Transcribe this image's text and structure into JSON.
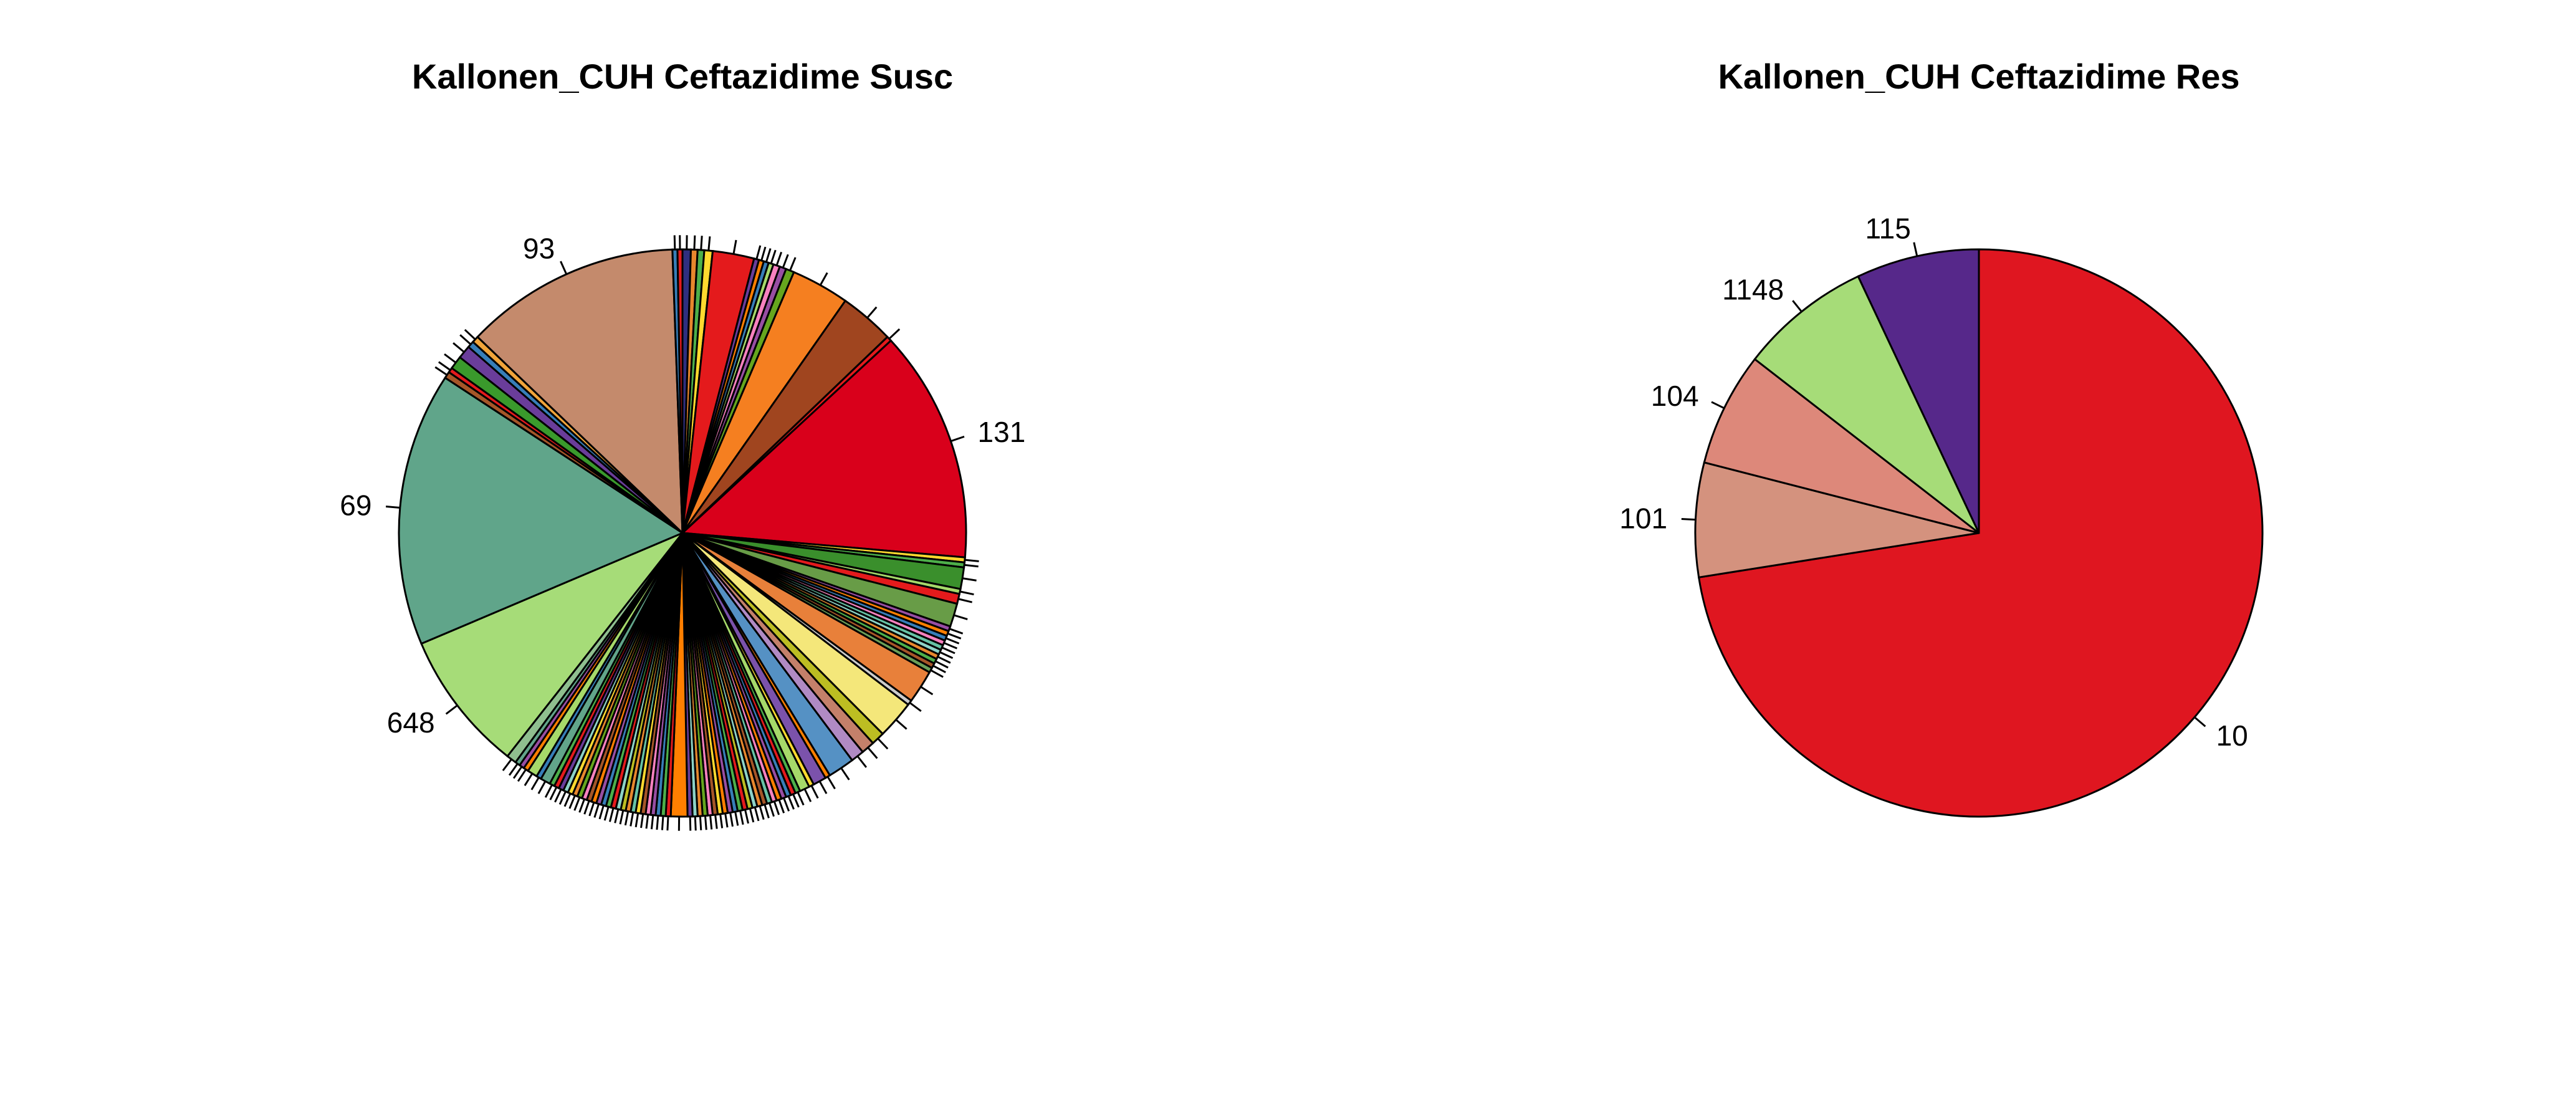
{
  "chart_data": [
    {
      "type": "pie",
      "title": "Kallonen_CUH Ceftazidime Susc",
      "slices": [
        {
          "label": "",
          "value": 0.5,
          "color": "#2f2f7f"
        },
        {
          "label": "",
          "value": 0.4,
          "color": "#e7872d"
        },
        {
          "label": "",
          "value": 0.4,
          "color": "#4daf4a"
        },
        {
          "label": "",
          "value": 0.5,
          "color": "#ffd92f"
        },
        {
          "label": "",
          "value": 2.5,
          "color": "#e41a1c"
        },
        {
          "label": "",
          "value": 0.3,
          "color": "#6a3d9a"
        },
        {
          "label": "",
          "value": 0.3,
          "color": "#ff7f00"
        },
        {
          "label": "",
          "value": 0.3,
          "color": "#377eb8"
        },
        {
          "label": "",
          "value": 0.3,
          "color": "#a6d96a"
        },
        {
          "label": "",
          "value": 0.4,
          "color": "#f781bf"
        },
        {
          "label": "",
          "value": 0.4,
          "color": "#984ea3"
        },
        {
          "label": "",
          "value": 0.5,
          "color": "#66a61e"
        },
        {
          "label": "",
          "value": 3.5,
          "color": "#f57f20"
        },
        {
          "label": "",
          "value": 3.3,
          "color": "#a0451f"
        },
        {
          "label": "",
          "value": 0.3,
          "color": "#e41a1c"
        },
        {
          "label": "131",
          "value": 14.0,
          "color": "#d9001b"
        },
        {
          "label": "",
          "value": 0.3,
          "color": "#ffd92f"
        },
        {
          "label": "",
          "value": 0.3,
          "color": "#4daf4a"
        },
        {
          "label": "",
          "value": 1.3,
          "color": "#3a8f2c"
        },
        {
          "label": "",
          "value": 0.3,
          "color": "#a6d96a"
        },
        {
          "label": "",
          "value": 0.6,
          "color": "#e41a1c"
        },
        {
          "label": "",
          "value": 1.4,
          "color": "#689c47"
        },
        {
          "label": "",
          "value": 0.3,
          "color": "#984ea3"
        },
        {
          "label": "",
          "value": 0.3,
          "color": "#ff7f00"
        },
        {
          "label": "",
          "value": 0.3,
          "color": "#377eb8"
        },
        {
          "label": "",
          "value": 0.3,
          "color": "#f781bf"
        },
        {
          "label": "",
          "value": 0.3,
          "color": "#66c2a5"
        },
        {
          "label": "",
          "value": 0.3,
          "color": "#8dd3c7"
        },
        {
          "label": "",
          "value": 0.3,
          "color": "#e7872d"
        },
        {
          "label": "",
          "value": 0.3,
          "color": "#4daf4a"
        },
        {
          "label": "",
          "value": 0.3,
          "color": "#a65628"
        },
        {
          "label": "",
          "value": 0.3,
          "color": "#6a9f58"
        },
        {
          "label": "",
          "value": 2.0,
          "color": "#e8803a"
        },
        {
          "label": "",
          "value": 0.3,
          "color": "#cccccc"
        },
        {
          "label": "",
          "value": 2.3,
          "color": "#f4e77a"
        },
        {
          "label": "",
          "value": 0.8,
          "color": "#bcbd22"
        },
        {
          "label": "",
          "value": 0.8,
          "color": "#c4806a"
        },
        {
          "label": "",
          "value": 0.8,
          "color": "#b08ac4"
        },
        {
          "label": "",
          "value": 1.6,
          "color": "#5591c4"
        },
        {
          "label": "",
          "value": 0.3,
          "color": "#ff7f00"
        },
        {
          "label": "",
          "value": 0.8,
          "color": "#7b52ab"
        },
        {
          "label": "",
          "value": 0.3,
          "color": "#ffd92f"
        },
        {
          "label": "",
          "value": 0.6,
          "color": "#a6d96a"
        },
        {
          "label": "",
          "value": 0.3,
          "color": "#4daf4a"
        },
        {
          "label": "",
          "value": 0.3,
          "color": "#e41a1c"
        },
        {
          "label": "",
          "value": 0.3,
          "color": "#377eb8"
        },
        {
          "label": "",
          "value": 0.3,
          "color": "#984ea3"
        },
        {
          "label": "",
          "value": 0.3,
          "color": "#ff7f00"
        },
        {
          "label": "",
          "value": 0.3,
          "color": "#f781bf"
        },
        {
          "label": "",
          "value": 0.3,
          "color": "#66c2a5"
        },
        {
          "label": "",
          "value": 0.3,
          "color": "#a65628"
        },
        {
          "label": "",
          "value": 0.3,
          "color": "#e7872d"
        },
        {
          "label": "",
          "value": 0.3,
          "color": "#8dd3c7"
        },
        {
          "label": "",
          "value": 0.3,
          "color": "#bcbd22"
        },
        {
          "label": "",
          "value": 0.3,
          "color": "#e41a1c"
        },
        {
          "label": "",
          "value": 0.3,
          "color": "#4daf4a"
        },
        {
          "label": "",
          "value": 0.3,
          "color": "#377eb8"
        },
        {
          "label": "",
          "value": 0.3,
          "color": "#984ea3"
        },
        {
          "label": "",
          "value": 0.3,
          "color": "#ff7f00"
        },
        {
          "label": "",
          "value": 0.3,
          "color": "#ffd92f"
        },
        {
          "label": "",
          "value": 0.3,
          "color": "#a65628"
        },
        {
          "label": "",
          "value": 0.3,
          "color": "#f781bf"
        },
        {
          "label": "",
          "value": 0.3,
          "color": "#66a61e"
        },
        {
          "label": "",
          "value": 0.3,
          "color": "#e7872d"
        },
        {
          "label": "",
          "value": 0.3,
          "color": "#8dd3c7"
        },
        {
          "label": "",
          "value": 0.3,
          "color": "#6a3d9a"
        },
        {
          "label": "",
          "value": 1.0,
          "color": "#ff7f00"
        },
        {
          "label": "",
          "value": 0.3,
          "color": "#e41a1c"
        },
        {
          "label": "",
          "value": 0.3,
          "color": "#4daf4a"
        },
        {
          "label": "",
          "value": 0.3,
          "color": "#377eb8"
        },
        {
          "label": "",
          "value": 0.3,
          "color": "#984ea3"
        },
        {
          "label": "",
          "value": 0.3,
          "color": "#f781bf"
        },
        {
          "label": "",
          "value": 0.3,
          "color": "#a65628"
        },
        {
          "label": "",
          "value": 0.3,
          "color": "#ffd92f"
        },
        {
          "label": "",
          "value": 0.3,
          "color": "#66c2a5"
        },
        {
          "label": "",
          "value": 0.3,
          "color": "#e7872d"
        },
        {
          "label": "",
          "value": 0.3,
          "color": "#bcbd22"
        },
        {
          "label": "",
          "value": 0.3,
          "color": "#8dd3c7"
        },
        {
          "label": "",
          "value": 0.3,
          "color": "#e41a1c"
        },
        {
          "label": "",
          "value": 0.3,
          "color": "#4daf4a"
        },
        {
          "label": "",
          "value": 0.3,
          "color": "#377eb8"
        },
        {
          "label": "",
          "value": 0.3,
          "color": "#984ea3"
        },
        {
          "label": "",
          "value": 0.3,
          "color": "#ff7f00"
        },
        {
          "label": "",
          "value": 0.3,
          "color": "#a65628"
        },
        {
          "label": "",
          "value": 0.3,
          "color": "#f781bf"
        },
        {
          "label": "",
          "value": 0.3,
          "color": "#66a61e"
        },
        {
          "label": "",
          "value": 0.3,
          "color": "#e7872d"
        },
        {
          "label": "",
          "value": 0.3,
          "color": "#ffd92f"
        },
        {
          "label": "",
          "value": 0.3,
          "color": "#8dd3c7"
        },
        {
          "label": "",
          "value": 0.3,
          "color": "#6a3d9a"
        },
        {
          "label": "",
          "value": 0.3,
          "color": "#e41a1c"
        },
        {
          "label": "",
          "value": 0.3,
          "color": "#4daf4a"
        },
        {
          "label": "",
          "value": 0.6,
          "color": "#62a58a"
        },
        {
          "label": "",
          "value": 0.3,
          "color": "#377eb8"
        },
        {
          "label": "",
          "value": 0.6,
          "color": "#a6d96a"
        },
        {
          "label": "",
          "value": 0.3,
          "color": "#ff7f00"
        },
        {
          "label": "",
          "value": 0.3,
          "color": "#984ea3"
        },
        {
          "label": "",
          "value": 0.3,
          "color": "#62a58a"
        },
        {
          "label": "",
          "value": 0.6,
          "color": "#8fbf8f"
        },
        {
          "label": "648",
          "value": 8.5,
          "color": "#a6dc78"
        },
        {
          "label": "69",
          "value": 16.5,
          "color": "#60a58a"
        },
        {
          "label": "",
          "value": 0.4,
          "color": "#a65628"
        },
        {
          "label": "",
          "value": 0.3,
          "color": "#e41a1c"
        },
        {
          "label": "",
          "value": 0.8,
          "color": "#3a9a2c"
        },
        {
          "label": "",
          "value": 0.8,
          "color": "#6a3d9a"
        },
        {
          "label": "",
          "value": 0.4,
          "color": "#377eb8"
        },
        {
          "label": "",
          "value": 0.4,
          "color": "#f0a43a"
        },
        {
          "label": "93",
          "value": 13.0,
          "color": "#c48a6c"
        },
        {
          "label": "",
          "value": 0.3,
          "color": "#377eb8"
        },
        {
          "label": "",
          "value": 0.3,
          "color": "#e41a1c"
        }
      ]
    },
    {
      "type": "pie",
      "title": "Kallonen_CUH Ceftazidime Res",
      "slices": [
        {
          "label": "10",
          "value": 72.5,
          "color": "#df1620"
        },
        {
          "label": "101",
          "value": 6.5,
          "color": "#d4927e"
        },
        {
          "label": "104",
          "value": 6.5,
          "color": "#dd887a"
        },
        {
          "label": "1148",
          "value": 7.5,
          "color": "#a6dc78"
        },
        {
          "label": "115",
          "value": 7.0,
          "color": "#56288a"
        }
      ]
    }
  ]
}
